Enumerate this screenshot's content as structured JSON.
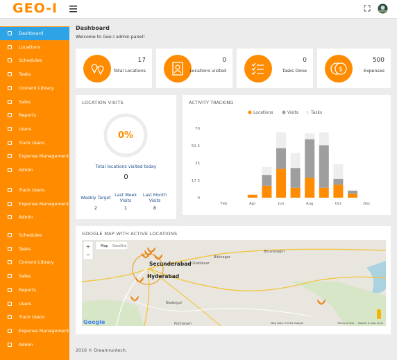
{
  "header": {
    "logo": "GEO-I"
  },
  "sidebar": {
    "groups": [
      [
        "Dashboard",
        "Locations",
        "Schedules",
        "Tasks",
        "Content Library",
        "Sales",
        "Reports",
        "Users",
        "Track Users",
        "Expense Management",
        "Admin"
      ],
      [
        "Track Users",
        "Expense Management",
        "Admin"
      ],
      [
        "Schedules",
        "Tasks",
        "Content Library",
        "Sales",
        "Reports",
        "Users",
        "Track Users",
        "Expense Management",
        "Admin"
      ]
    ]
  },
  "page": {
    "title": "Dashboard",
    "subtitle": "Welcome to Geo-I admin panel!"
  },
  "stats": [
    {
      "value": 17,
      "label": "Total Locations"
    },
    {
      "value": 0,
      "label": "Locations visited"
    },
    {
      "value": 0,
      "label": "Tasks Done"
    },
    {
      "value": 500,
      "label": "Expenses"
    }
  ],
  "location_visits": {
    "title": "LOCATION VISITS",
    "percent": "0%",
    "caption": "Total locations visited today",
    "today": 0,
    "columns": [
      {
        "label": "Weekly Target",
        "value": 2
      },
      {
        "label": "Last Week Visits",
        "value": 1
      },
      {
        "label": "Last Month Visits",
        "value": 8
      }
    ]
  },
  "chart_data": {
    "type": "bar",
    "stacked": true,
    "title": "ACTIVITY TRACKING",
    "categories": [
      null,
      "Feb",
      null,
      "Apr",
      null,
      "Jun",
      null,
      "Aug",
      null,
      "Oct",
      null,
      "Dec"
    ],
    "series": [
      {
        "name": "Locations",
        "color": "#ff8c00",
        "values": [
          0,
          0,
          0,
          3,
          12,
          29,
          10,
          20,
          10,
          13,
          4,
          0
        ]
      },
      {
        "name": "Visits",
        "color": "#9e9e9e",
        "values": [
          0,
          0,
          0,
          0,
          11,
          21,
          20,
          39,
          43,
          6,
          3,
          0
        ]
      },
      {
        "name": "Tasks",
        "color": "#eeeeee",
        "values": [
          0,
          0,
          0,
          0,
          8,
          16,
          15,
          6,
          13,
          15,
          1,
          0
        ]
      }
    ],
    "ylim": [
      0,
      70
    ],
    "yticks": [
      0,
      17.5,
      35,
      52.5,
      70
    ],
    "legend": "top"
  },
  "map": {
    "title": "GOOGLE MAP WITH ACTIVE LOCATIONS",
    "buttons": [
      "Map",
      "Satellite"
    ],
    "zoom": [
      "+",
      "−"
    ],
    "places": [
      "Secunderabad",
      "Hyderabad",
      "Ghatkesar",
      "Bibinagar",
      "Bhuvanagiri",
      "Nadergul",
      "Pocharam"
    ],
    "brand": "Google",
    "attribution": [
      "Map data ©2016 Google",
      "Terms of Use",
      "Report a map error"
    ]
  },
  "footer": "2016 © Dreamruntech."
}
